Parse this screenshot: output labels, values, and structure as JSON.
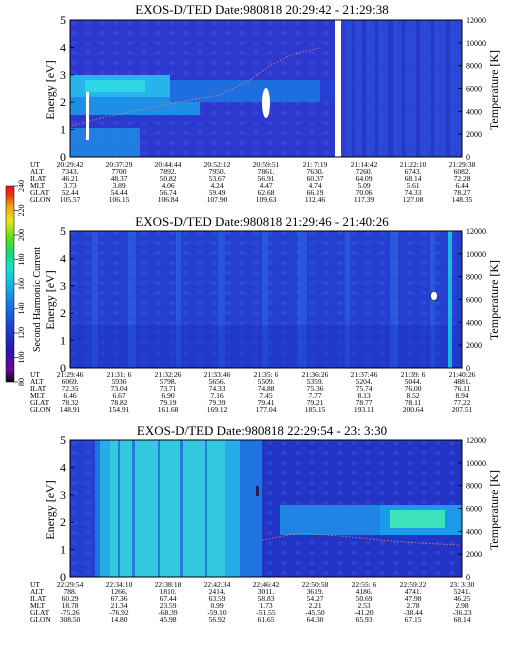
{
  "colorbar": {
    "label": "Second Harmonic Current",
    "ticks": [
      "240",
      "220",
      "200",
      "180",
      "160",
      "140",
      "120",
      "100",
      "80"
    ],
    "colors": [
      "#0a0a0a",
      "#6a0a8a",
      "#2a16b0",
      "#1a40d8",
      "#1a7ae0",
      "#14b8e8",
      "#16e0c8",
      "#18d870",
      "#60e018",
      "#e8e814",
      "#f0a014",
      "#e83a14",
      "#e81414"
    ]
  },
  "panels": [
    {
      "title": "EXOS-D/TED   Date:980818  20:29:42 - 21:29:38",
      "ylabel": "Energy [eV]",
      "y2label": "Temperature [K]",
      "yticks": [
        "5",
        "4",
        "3",
        "2",
        "1",
        "0"
      ],
      "y2ticks": [
        "12000",
        "10000",
        "8000",
        "6000",
        "4000",
        "2000",
        "0"
      ],
      "table_labels": [
        "UT",
        "ALT",
        "ILAT",
        "MLT",
        "GLAT",
        "GLON"
      ],
      "table_columns": [
        [
          "20:29:42",
          "7343.",
          "46.21",
          "3.73",
          "52.44",
          "105.57"
        ],
        [
          "20:37:29",
          "7700",
          "48.37",
          "3.89",
          "54.44",
          "106.15"
        ],
        [
          "20:44:44",
          "7892.",
          "50.82",
          "4.06",
          "56.74",
          "106.84"
        ],
        [
          "20:52:12",
          "7950.",
          "53.67",
          "4.24",
          "59.49",
          "107.90"
        ],
        [
          "20:59:51",
          "7861.",
          "56.91",
          "4.47",
          "62.68",
          "109.63"
        ],
        [
          "21: 7:19",
          "7630.",
          "60.37",
          "4.74",
          "66.19",
          "112.46"
        ],
        [
          "21:14:42",
          "7260.",
          "64.09",
          "5.09",
          "70.06",
          "117.39"
        ],
        [
          "21:22:10",
          "6743.",
          "68.14",
          "5.61",
          "74.33",
          "127.08"
        ],
        [
          "21:29:38",
          "6082.",
          "72.28",
          "6.44",
          "78.27",
          "148.35"
        ]
      ]
    },
    {
      "title": "EXOS-D/TED   Date:980818  21:29:46 - 21:40:26",
      "ylabel": "Energy [eV]",
      "y2label": "Temperature [K]",
      "yticks": [
        "5",
        "4",
        "3",
        "2",
        "1",
        "0"
      ],
      "y2ticks": [
        "12000",
        "10000",
        "8000",
        "6000",
        "4000",
        "2000",
        "0"
      ],
      "table_labels": [
        "UT",
        "ALT",
        "ILAT",
        "MLT",
        "GLAT",
        "GLON"
      ],
      "table_columns": [
        [
          "21:29:46",
          "6069.",
          "72.35",
          "6.46",
          "78.32",
          "148.91"
        ],
        [
          "21:31: 6",
          "5936",
          "73.04",
          "6.67",
          "78.82",
          "154.91"
        ],
        [
          "21:32:26",
          "5798.",
          "73.71",
          "6.90",
          "79.19",
          "161.68"
        ],
        [
          "21:33:46",
          "5656.",
          "74.33",
          "7.16",
          "79.39",
          "169.12"
        ],
        [
          "21:35: 6",
          "5509.",
          "74.88",
          "7.45",
          "79.41",
          "177.04"
        ],
        [
          "21:36:26",
          "5359.",
          "75.36",
          "7.77",
          "79.21",
          "185.15"
        ],
        [
          "21:37:46",
          "5204.",
          "75.74",
          "8.13",
          "78.77",
          "193.11"
        ],
        [
          "21:39: 6",
          "5044.",
          "76.00",
          "8.52",
          "78.11",
          "200.64"
        ],
        [
          "21:40:26",
          "4881.",
          "76.11",
          "8.94",
          "77.22",
          "207.51"
        ]
      ]
    },
    {
      "title": "EXOS-D/TED   Date:980818  22:29:54 - 23: 3:30",
      "ylabel": "Energy [eV]",
      "y2label": "Temperature [K]",
      "yticks": [
        "5",
        "4",
        "3",
        "2",
        "1",
        "0"
      ],
      "y2ticks": [
        "12000",
        "10000",
        "8000",
        "6000",
        "4000",
        "2000",
        "0"
      ],
      "table_labels": [
        "UT",
        "ALT",
        "ILAT",
        "MLT",
        "GLAT",
        "GLON"
      ],
      "table_columns": [
        [
          "22:29:54",
          "788.",
          "60.29",
          "18.78",
          "-75.26",
          "308.50"
        ],
        [
          "22:34:10",
          "1266.",
          "67.36",
          "21.34",
          "-76.92",
          "14.80"
        ],
        [
          "22:38:18",
          "1810.",
          "67.44",
          "23.59",
          "-68.39",
          "45.98"
        ],
        [
          "22:42:34",
          "2414.",
          "63.59",
          "0.99",
          "-59.10",
          "56.92"
        ],
        [
          "22:46:42",
          "3011.",
          "58.83",
          "1.73",
          "-51.55",
          "61.65"
        ],
        [
          "22:50:58",
          "3619.",
          "54.27",
          "2.21",
          "-45.50",
          "64.30"
        ],
        [
          "22:55: 6",
          "4186.",
          "50.69",
          "2.53",
          "-41.20",
          "65.93"
        ],
        [
          "22:59:22",
          "4741.",
          "47.98",
          "2.78",
          "-38.44",
          "67.15"
        ],
        [
          "23: 3:30",
          "5241.",
          "46.25",
          "2.98",
          "-36.23",
          "68.14"
        ]
      ]
    }
  ]
}
